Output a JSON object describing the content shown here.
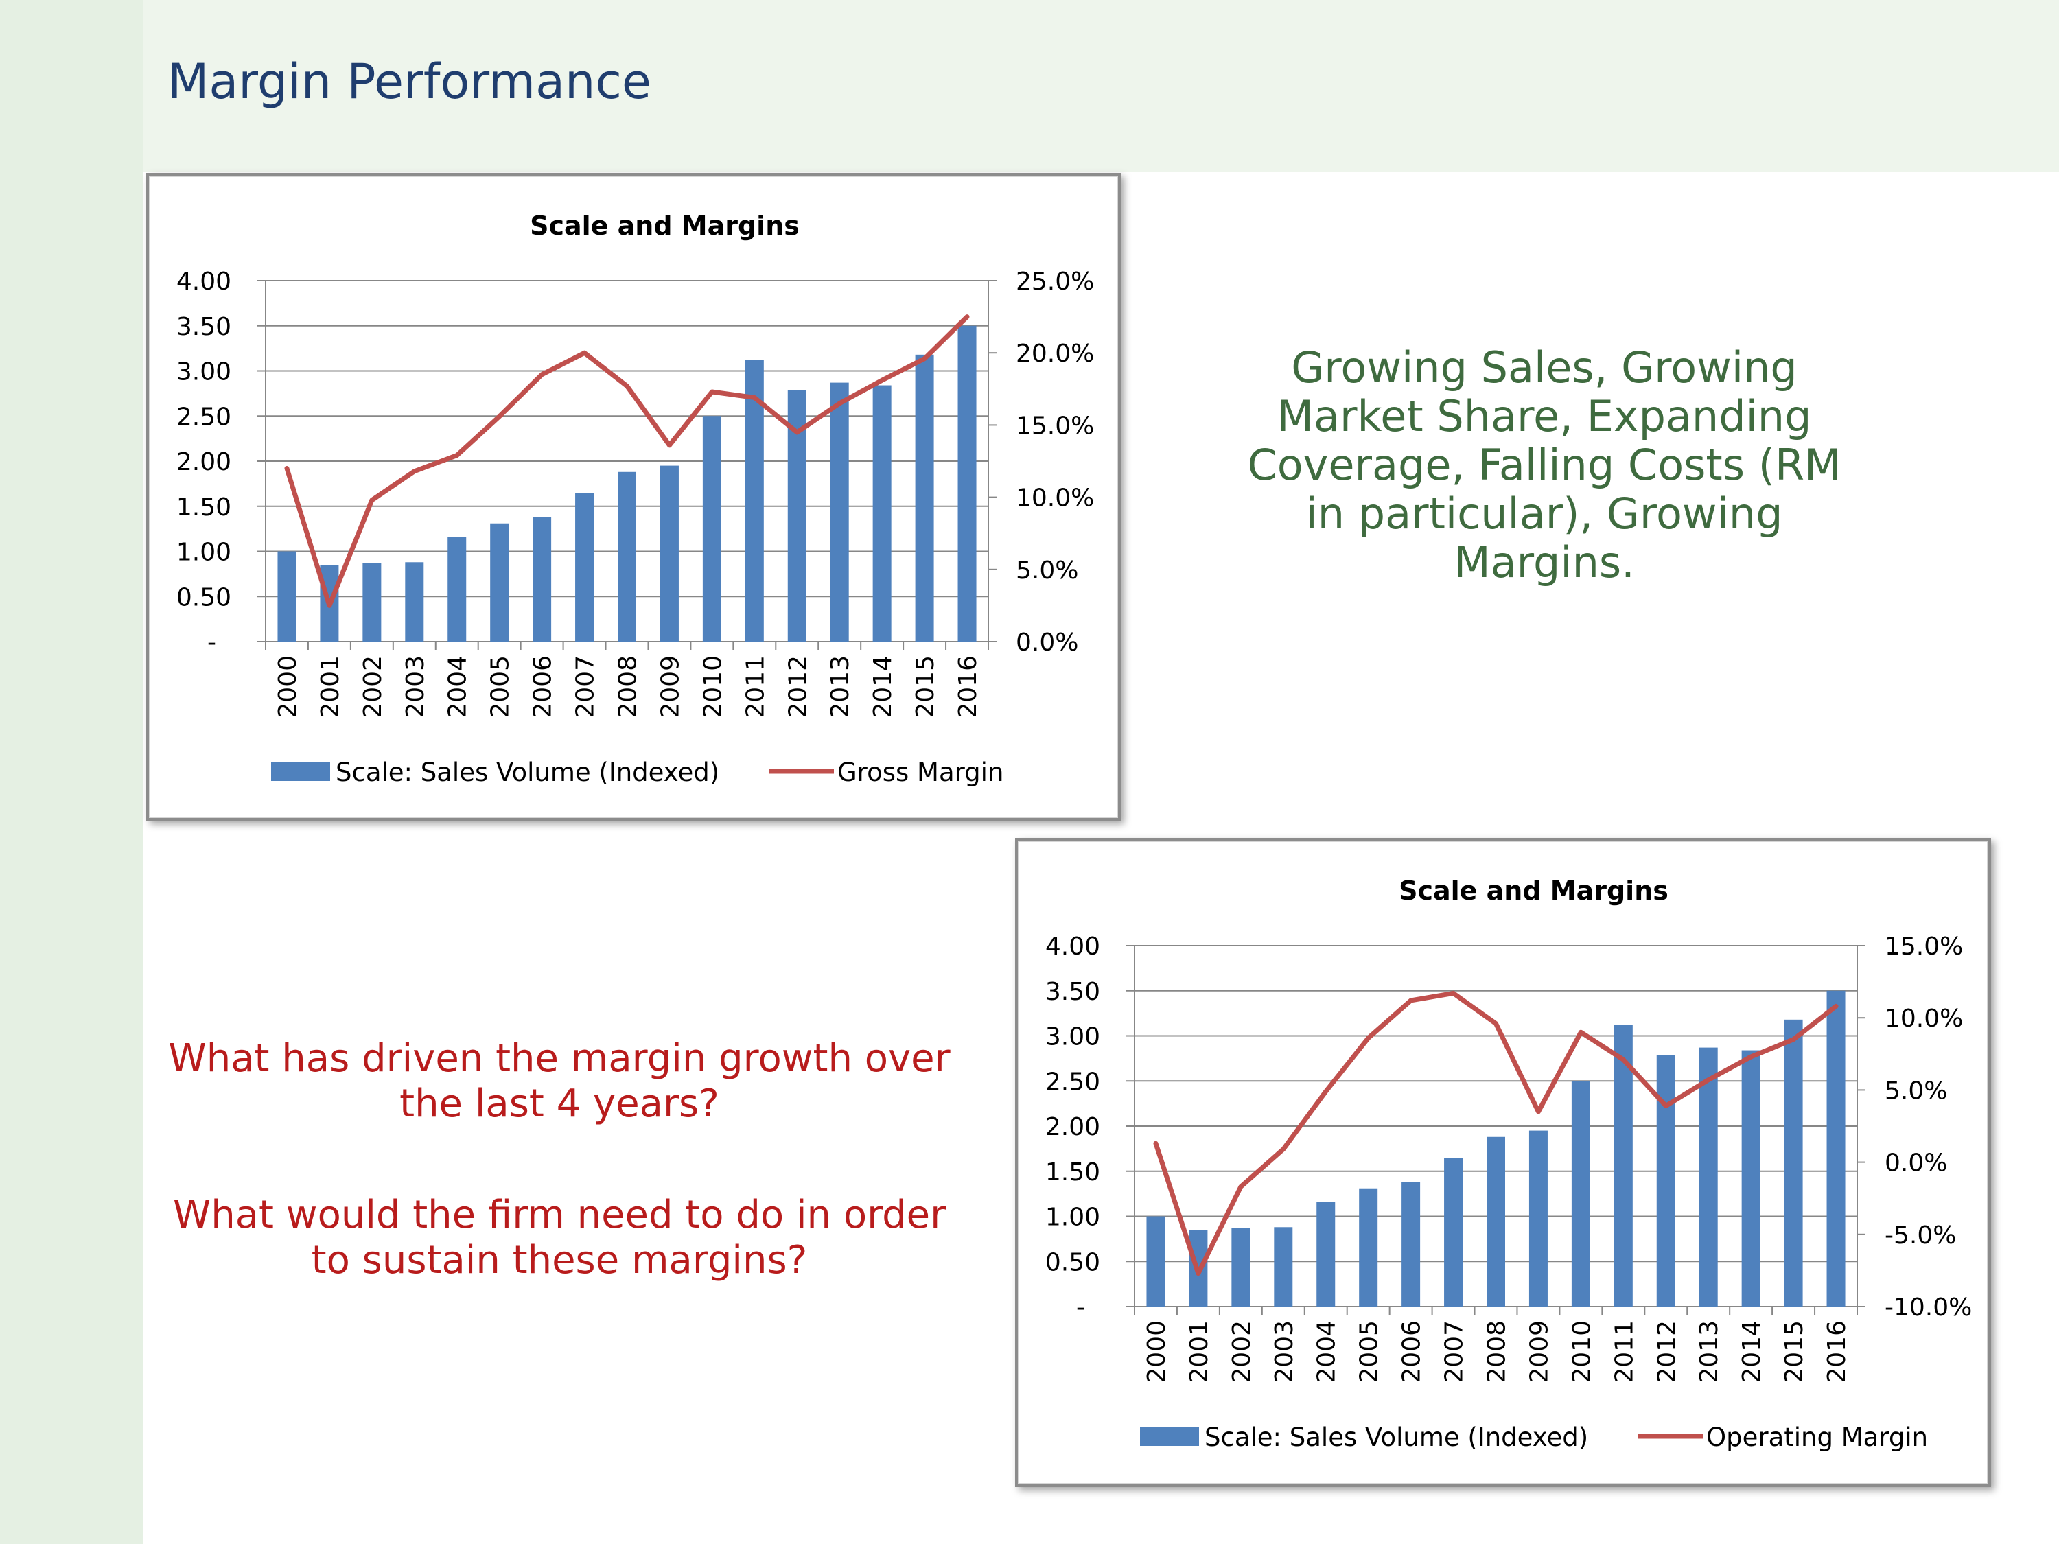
{
  "slide": {
    "title": "Margin Performance",
    "summary": "Growing Sales, Growing Market Share, Expanding Coverage, Falling Costs (RM in particular), Growing Margins.",
    "questions": [
      "What has driven the margin growth over the last 4 years?",
      "What would the firm need to do in order to sustain these margins?"
    ]
  },
  "colors": {
    "bars": "#4f81bd",
    "line": "#c0504d",
    "gridline": "#878787",
    "title_text": "#1f3d6e",
    "summary_text": "#3f6b3f",
    "question_text": "#b81c1c"
  },
  "chart_data": [
    {
      "type": "bar+line",
      "title": "Scale and Margins",
      "categories": [
        "2000",
        "2001",
        "2002",
        "2003",
        "2004",
        "2005",
        "2006",
        "2007",
        "2008",
        "2009",
        "2010",
        "2011",
        "2012",
        "2013",
        "2014",
        "2015",
        "2016"
      ],
      "y_left": {
        "range": [
          0,
          4
        ],
        "ticks": [
          "-",
          "0.50",
          "1.00",
          "1.50",
          "2.00",
          "2.50",
          "3.00",
          "3.50",
          "4.00"
        ]
      },
      "y_right": {
        "range": [
          0,
          25
        ],
        "ticks": [
          "0.0%",
          "5.0%",
          "10.0%",
          "15.0%",
          "20.0%",
          "25.0%"
        ]
      },
      "legend_position": "bottom",
      "grid": true,
      "series": [
        {
          "name": "Scale: Sales Volume (Indexed)",
          "type": "bar",
          "axis": "left",
          "values": [
            1.0,
            0.85,
            0.87,
            0.88,
            1.16,
            1.31,
            1.38,
            1.65,
            1.88,
            1.95,
            2.5,
            3.12,
            2.79,
            2.87,
            2.84,
            3.18,
            3.5
          ]
        },
        {
          "name": "Gross Margin",
          "type": "line",
          "axis": "right",
          "values": [
            12.0,
            2.5,
            9.8,
            11.8,
            12.9,
            15.6,
            18.5,
            20.0,
            17.7,
            13.6,
            17.3,
            16.9,
            14.5,
            16.5,
            18.1,
            19.6,
            22.5
          ]
        }
      ]
    },
    {
      "type": "bar+line",
      "title": "Scale and Margins",
      "categories": [
        "2000",
        "2001",
        "2002",
        "2003",
        "2004",
        "2005",
        "2006",
        "2007",
        "2008",
        "2009",
        "2010",
        "2011",
        "2012",
        "2013",
        "2014",
        "2015",
        "2016"
      ],
      "y_left": {
        "range": [
          0,
          4
        ],
        "ticks": [
          "-",
          "0.50",
          "1.00",
          "1.50",
          "2.00",
          "2.50",
          "3.00",
          "3.50",
          "4.00"
        ]
      },
      "y_right": {
        "range": [
          -10,
          15
        ],
        "ticks": [
          "-10.0%",
          "-5.0%",
          "0.0%",
          "5.0%",
          "10.0%",
          "15.0%"
        ]
      },
      "legend_position": "bottom",
      "grid": true,
      "series": [
        {
          "name": "Scale: Sales Volume (Indexed)",
          "type": "bar",
          "axis": "left",
          "values": [
            1.0,
            0.85,
            0.87,
            0.88,
            1.16,
            1.31,
            1.38,
            1.65,
            1.88,
            1.95,
            2.5,
            3.12,
            2.79,
            2.87,
            2.84,
            3.18,
            3.5
          ]
        },
        {
          "name": "Operating Margin",
          "type": "line",
          "axis": "right",
          "values": [
            1.3,
            -7.7,
            -1.7,
            0.9,
            4.9,
            8.6,
            11.2,
            11.7,
            9.6,
            3.5,
            9.0,
            7.1,
            3.9,
            5.7,
            7.3,
            8.5,
            10.8
          ]
        }
      ]
    }
  ]
}
